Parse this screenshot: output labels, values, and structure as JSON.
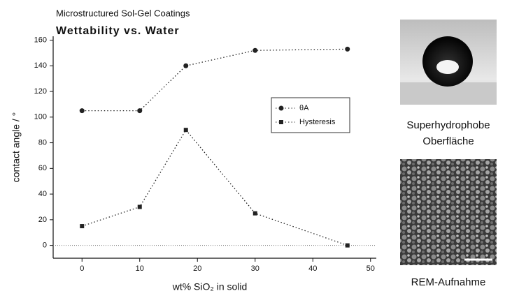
{
  "chart_data": {
    "type": "line",
    "title": "Microstructured Sol-Gel Coatings",
    "subtitle": "Wettability vs. Water",
    "x_label": "wt% SiO₂ in solid",
    "y_label": "contact angle / °",
    "x": [
      0,
      10,
      18,
      30,
      46
    ],
    "series": [
      {
        "name": "θA",
        "color": "#222222",
        "marker": "circle",
        "values": [
          105,
          105,
          140,
          152,
          153
        ]
      },
      {
        "name": "Hysteresis",
        "color": "#222222",
        "marker": "square",
        "values": [
          15,
          30,
          90,
          25,
          0
        ]
      }
    ],
    "xlim": [
      -5,
      51
    ],
    "ylim": [
      -10,
      163
    ],
    "xticks": [
      0,
      10,
      20,
      30,
      40,
      50
    ],
    "yticks": [
      0,
      20,
      40,
      60,
      80,
      100,
      120,
      140,
      160
    ],
    "zero_line": true,
    "legend": "center-right"
  },
  "images": [
    {
      "caption_lines": [
        "Superhydrophobe",
        "Oberfläche"
      ]
    },
    {
      "caption_lines": [
        "REM-Aufnahme"
      ]
    }
  ]
}
